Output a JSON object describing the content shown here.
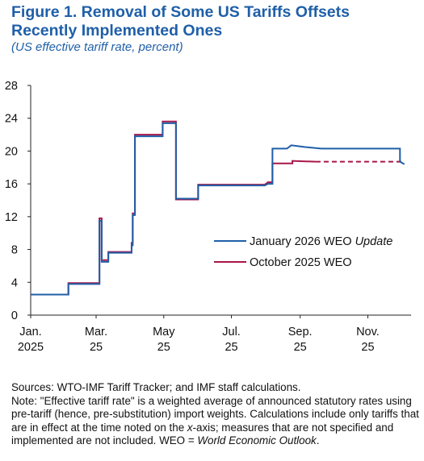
{
  "title": "Figure 1.  Removal of Some US Tariffs Offsets Recently Implemented Ones",
  "subtitle": "(US effective tariff rate, percent)",
  "notes": {
    "sources": "Sources: WTO-IMF Tariff Tracker; and IMF staff calculations.",
    "note_pre": "Note: \"Effective tariff rate\" is a weighted average of announced statutory rates using pre-tariff (hence, pre-substitution) import weights. Calculations include only tariffs that are in effect at the time noted on the ",
    "note_axis": "x",
    "note_mid": "-axis; measures that are not specified and implemented are not included. WEO = ",
    "note_weo": "World Economic Outlook",
    "note_end": "."
  },
  "colors": {
    "jan2026": "#1f5fa8",
    "oct2025": "#a8164a",
    "axis": "#222222"
  },
  "chart_data": {
    "type": "line",
    "xaxis": {
      "type": "date",
      "range": [
        "2025-01-01",
        "2025-12-10"
      ],
      "ticks": [
        {
          "date": "2025-01-01",
          "line1": "Jan.",
          "line2": "2025"
        },
        {
          "date": "2025-03-01",
          "line1": "Mar.",
          "line2": "25"
        },
        {
          "date": "2025-05-01",
          "line1": "May",
          "line2": "25"
        },
        {
          "date": "2025-07-01",
          "line1": "Jul.",
          "line2": "25"
        },
        {
          "date": "2025-09-01",
          "line1": "Sep.",
          "line2": "25"
        },
        {
          "date": "2025-11-01",
          "line1": "Nov.",
          "line2": "25"
        }
      ]
    },
    "ylim": [
      0,
      28
    ],
    "yticks": [
      0,
      4,
      8,
      12,
      16,
      20,
      24,
      28
    ],
    "legend_position": "center-right",
    "series": [
      {
        "name": "January 2026 WEO Update",
        "name_plain": "January 2026 WEO ",
        "name_italic": "Update",
        "color": "#1f5fa8",
        "points": [
          [
            "2025-01-01",
            2.5
          ],
          [
            "2025-02-04",
            2.5
          ],
          [
            "2025-02-04",
            3.8
          ],
          [
            "2025-03-04",
            3.8
          ],
          [
            "2025-03-04",
            11.5
          ],
          [
            "2025-03-06",
            11.5
          ],
          [
            "2025-03-06",
            6.5
          ],
          [
            "2025-03-12",
            6.5
          ],
          [
            "2025-03-12",
            7.6
          ],
          [
            "2025-04-02",
            7.6
          ],
          [
            "2025-04-02",
            8.5
          ],
          [
            "2025-04-03",
            8.5
          ],
          [
            "2025-04-03",
            12.2
          ],
          [
            "2025-04-05",
            12.2
          ],
          [
            "2025-04-05",
            21.8
          ],
          [
            "2025-04-30",
            21.8
          ],
          [
            "2025-04-30",
            23.4
          ],
          [
            "2025-05-12",
            23.4
          ],
          [
            "2025-05-12",
            14.2
          ],
          [
            "2025-06-01",
            14.2
          ],
          [
            "2025-06-01",
            15.8
          ],
          [
            "2025-07-31",
            15.8
          ],
          [
            "2025-08-03",
            16.0
          ],
          [
            "2025-08-07",
            16.0
          ],
          [
            "2025-08-07",
            20.3
          ],
          [
            "2025-08-20",
            20.3
          ],
          [
            "2025-08-24",
            20.7
          ],
          [
            "2025-09-05",
            20.5
          ],
          [
            "2025-09-20",
            20.3
          ],
          [
            "2025-11-30",
            20.3
          ],
          [
            "2025-11-30",
            18.7
          ],
          [
            "2025-12-04",
            18.4
          ]
        ]
      },
      {
        "name": "October 2025 WEO",
        "color": "#a8164a",
        "points": [
          [
            "2025-01-01",
            2.5
          ],
          [
            "2025-02-04",
            2.5
          ],
          [
            "2025-02-04",
            3.9
          ],
          [
            "2025-03-04",
            3.9
          ],
          [
            "2025-03-04",
            11.8
          ],
          [
            "2025-03-06",
            11.8
          ],
          [
            "2025-03-06",
            6.7
          ],
          [
            "2025-03-12",
            6.7
          ],
          [
            "2025-03-12",
            7.7
          ],
          [
            "2025-04-02",
            7.7
          ],
          [
            "2025-04-02",
            8.8
          ],
          [
            "2025-04-03",
            8.8
          ],
          [
            "2025-04-03",
            12.4
          ],
          [
            "2025-04-05",
            12.4
          ],
          [
            "2025-04-05",
            22.0
          ],
          [
            "2025-04-30",
            22.0
          ],
          [
            "2025-04-30",
            23.6
          ],
          [
            "2025-05-12",
            23.6
          ],
          [
            "2025-05-12",
            14.1
          ],
          [
            "2025-06-01",
            14.1
          ],
          [
            "2025-06-01",
            15.9
          ],
          [
            "2025-07-31",
            15.9
          ],
          [
            "2025-08-03",
            16.2
          ],
          [
            "2025-08-07",
            16.2
          ],
          [
            "2025-08-07",
            18.5
          ],
          [
            "2025-08-25",
            18.5
          ],
          [
            "2025-08-25",
            18.8
          ],
          [
            "2025-09-15",
            18.7
          ]
        ],
        "projection": [
          [
            "2025-09-15",
            18.7
          ],
          [
            "2025-12-04",
            18.7
          ]
        ]
      }
    ]
  }
}
